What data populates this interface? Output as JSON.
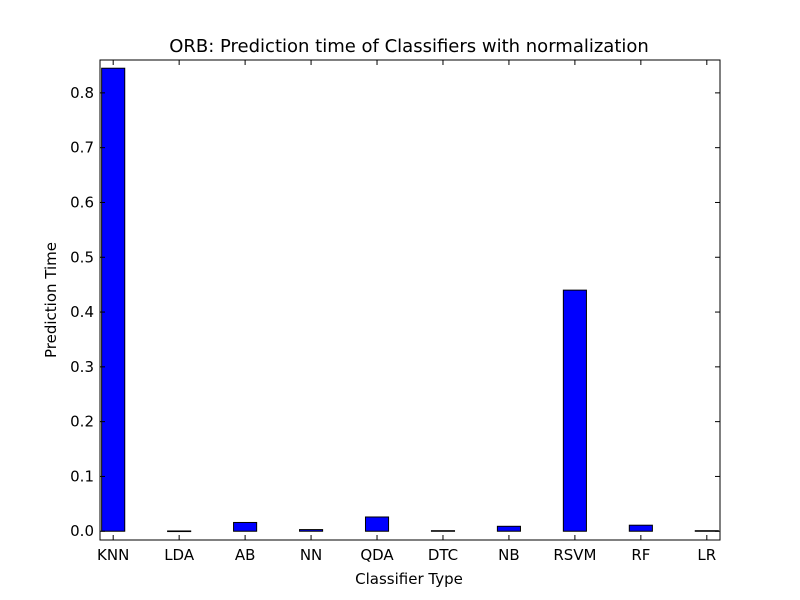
{
  "chart_data": {
    "type": "bar",
    "title": "ORB: Prediction time of Classifiers with normalization",
    "xlabel": "Classifier Type",
    "ylabel": "Prediction Time",
    "categories": [
      "KNN",
      "LDA",
      "AB",
      "NN",
      "QDA",
      "DTC",
      "NB",
      "RSVM",
      "RF",
      "LR"
    ],
    "values": [
      0.845,
      0.0005,
      0.016,
      0.003,
      0.026,
      0.001,
      0.009,
      0.44,
      0.011,
      0.001
    ],
    "ylim": [
      -0.016,
      0.86
    ],
    "yticks": [
      "0.0",
      "0.1",
      "0.2",
      "0.3",
      "0.4",
      "0.5",
      "0.6",
      "0.7",
      "0.8"
    ],
    "bar_color": "#0000ff",
    "edge_color": "#000000",
    "grid": false,
    "legend": "none"
  }
}
